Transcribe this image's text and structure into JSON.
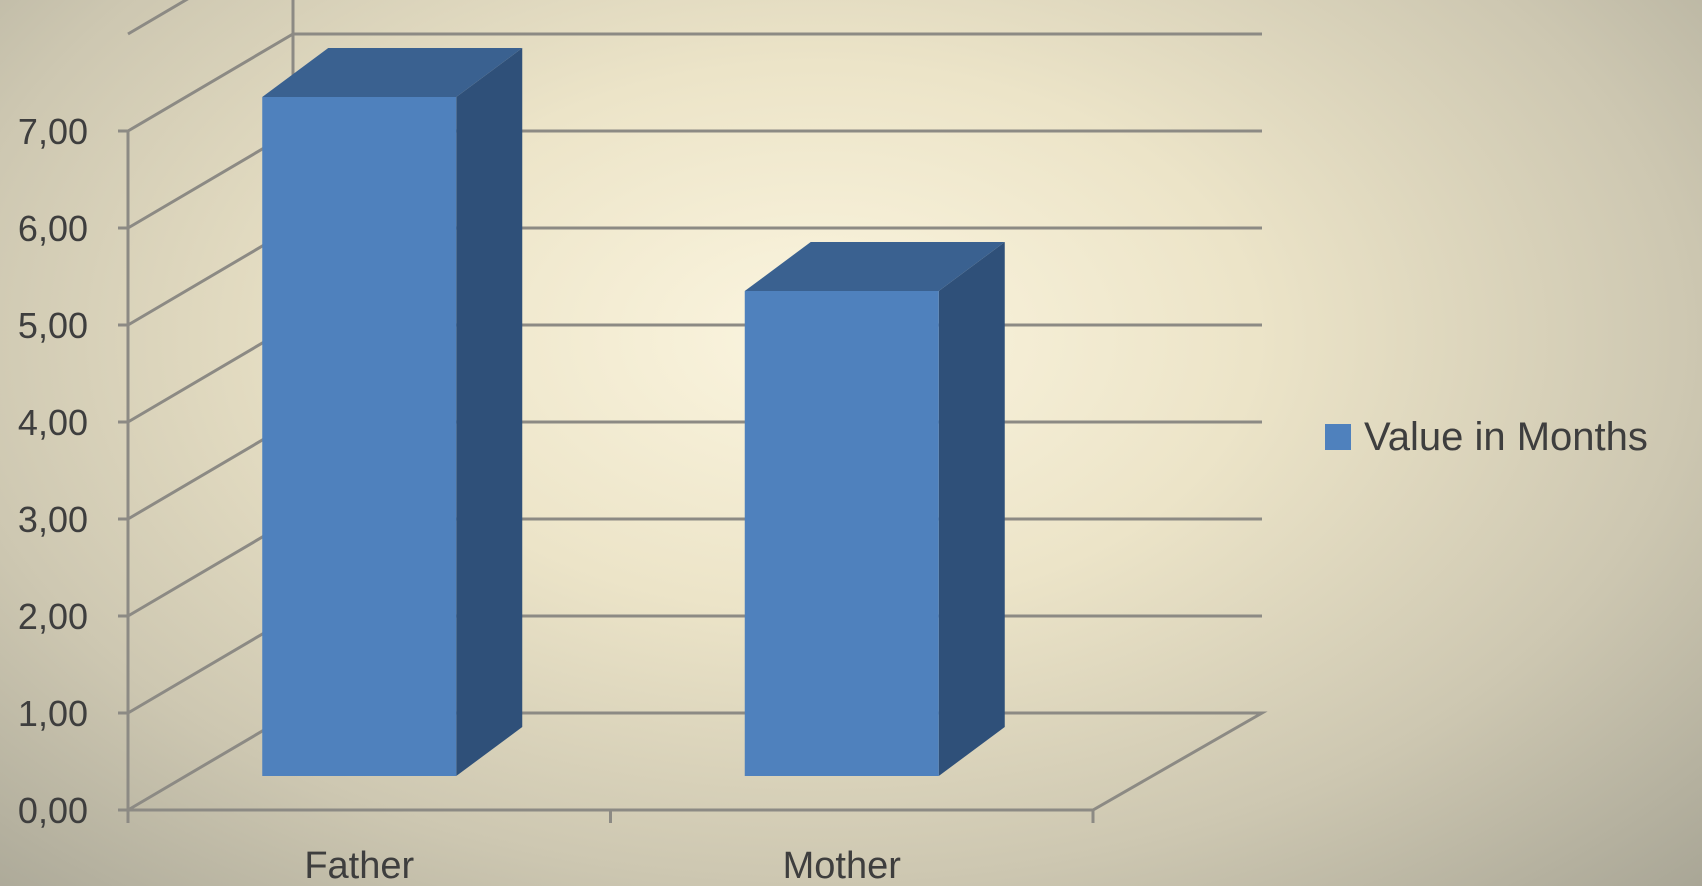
{
  "chart_data": {
    "type": "bar",
    "title": "",
    "xlabel": "",
    "ylabel": "",
    "categories": [
      "Father",
      "Mother"
    ],
    "series": [
      {
        "name": "Value in Months",
        "values": [
          7.0,
          5.0
        ],
        "color": "#4f81bd"
      }
    ],
    "ylim": [
      0,
      7
    ],
    "yticks": [
      "0,00",
      "1,00",
      "2,00",
      "3,00",
      "4,00",
      "5,00",
      "6,00",
      "7,00"
    ],
    "grid": true,
    "legend_position": "right",
    "style": "3d-column"
  }
}
